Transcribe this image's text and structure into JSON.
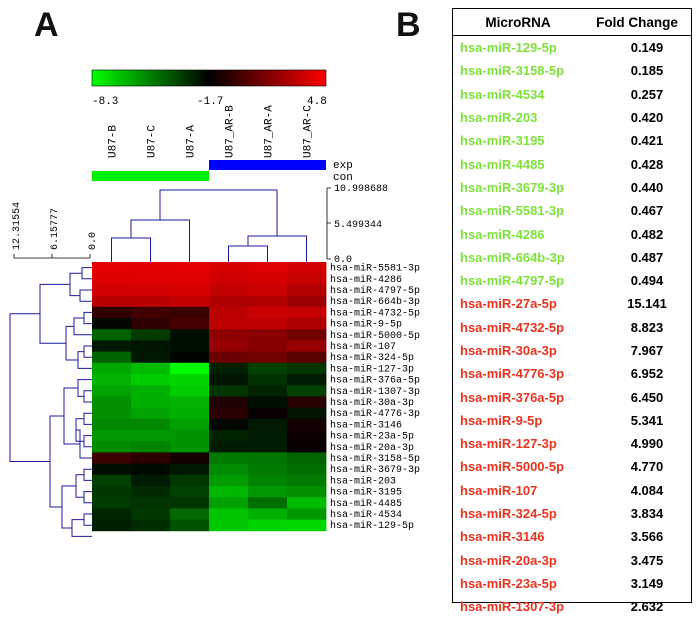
{
  "panels": {
    "a": "A",
    "b": "B"
  },
  "colors": {
    "down": "#7ee23b",
    "up": "#e8341f",
    "exp_bar": "#0000ff",
    "con_bar": "#00ee00",
    "dendrogram": "#1a1a9e"
  },
  "color_scale": {
    "min_label": "-8.3",
    "mid_label": "-1.7",
    "max_label": "4.8"
  },
  "group_labels": {
    "exp": "exp",
    "con": "con"
  },
  "col_dendro_scale": [
    "10.998688",
    "5.499344",
    "0.0"
  ],
  "row_dendro_scale": [
    "12.31554",
    "6.15777",
    "0.0"
  ],
  "chart_data": [
    {
      "type": "heatmap",
      "columns": [
        "U87-B",
        "U87-C",
        "U87-A",
        "U87_AR-B",
        "U87_AR-A",
        "U87_AR-C"
      ],
      "rows": [
        "hsa-miR-5581-3p",
        "hsa-miR-4286",
        "hsa-miR-4797-5p",
        "hsa-miR-664b-3p",
        "hsa-miR-4732-5p",
        "hsa-miR-9-5p",
        "hsa-miR-5000-5p",
        "hsa-miR-107",
        "hsa-miR-324-5p",
        "hsa-miR-127-3p",
        "hsa-miR-376a-5p",
        "hsa-miR-1307-3p",
        "hsa-miR-30a-3p",
        "hsa-miR-4776-3p",
        "hsa-miR-3146",
        "hsa-miR-23a-5p",
        "hsa-miR-20a-3p",
        "hsa-miR-3158-5p",
        "hsa-miR-3679-3p",
        "hsa-miR-203",
        "hsa-miR-3195",
        "hsa-miR-4485",
        "hsa-miR-4534",
        "hsa-miR-129-5p"
      ],
      "values": [
        [
          4.6,
          4.5,
          4.6,
          4.1,
          4.3,
          4.0
        ],
        [
          4.3,
          4.4,
          4.4,
          3.9,
          4.0,
          3.6
        ],
        [
          4.0,
          4.0,
          4.2,
          3.5,
          3.7,
          3.0
        ],
        [
          3.1,
          3.1,
          3.5,
          2.8,
          2.9,
          2.2
        ],
        [
          -0.8,
          -0.4,
          -0.6,
          3.2,
          3.7,
          3.5
        ],
        [
          -2.0,
          -0.8,
          -0.3,
          3.3,
          3.3,
          2.8
        ],
        [
          -4.5,
          -3.5,
          -2.2,
          1.8,
          1.6,
          1.0
        ],
        [
          -2.5,
          -2.4,
          -2.2,
          2.0,
          1.6,
          2.1
        ],
        [
          -4.6,
          -2.5,
          -1.9,
          0.8,
          0.9,
          0.2
        ],
        [
          -6.3,
          -6.8,
          -8.3,
          -2.7,
          -3.6,
          -3.3
        ],
        [
          -6.6,
          -7.2,
          -7.4,
          -2.4,
          -3.2,
          -2.6
        ],
        [
          -6.2,
          -6.5,
          -7.2,
          -3.3,
          -2.8,
          -3.6
        ],
        [
          -5.7,
          -6.5,
          -6.6,
          -1.2,
          -2.2,
          -1.0
        ],
        [
          -5.7,
          -6.2,
          -6.5,
          -0.9,
          -1.6,
          -2.4
        ],
        [
          -5.5,
          -5.5,
          -6.1,
          -2.0,
          -2.5,
          -1.4
        ],
        [
          -5.9,
          -5.9,
          -5.8,
          -2.8,
          -2.6,
          -1.5
        ],
        [
          -5.6,
          -5.4,
          -5.8,
          -2.6,
          -2.6,
          -1.6
        ],
        [
          -0.5,
          -0.9,
          -1.4,
          -5.1,
          -5.0,
          -4.6
        ],
        [
          -2.2,
          -2.1,
          -2.5,
          -5.6,
          -5.2,
          -4.8
        ],
        [
          -3.6,
          -2.6,
          -3.4,
          -6.0,
          -5.4,
          -5.2
        ],
        [
          -3.4,
          -3.0,
          -3.6,
          -6.7,
          -5.9,
          -5.7
        ],
        [
          -3.5,
          -3.3,
          -3.3,
          -6.1,
          -4.8,
          -6.8
        ],
        [
          -2.9,
          -3.4,
          -4.7,
          -7.0,
          -6.5,
          -5.9
        ],
        [
          -2.7,
          -3.1,
          -4.1,
          -7.1,
          -7.4,
          -7.5
        ]
      ]
    },
    {
      "type": "table",
      "headers": [
        "MicroRNA",
        "Fold Change"
      ],
      "rows": [
        {
          "name": "hsa-miR-129-5p",
          "value": "0.149",
          "direction": "down"
        },
        {
          "name": "hsa-miR-3158-5p",
          "value": "0.185",
          "direction": "down"
        },
        {
          "name": "hsa-miR-4534",
          "value": "0.257",
          "direction": "down"
        },
        {
          "name": "hsa-miR-203",
          "value": "0.420",
          "direction": "down"
        },
        {
          "name": "hsa-miR-3195",
          "value": "0.421",
          "direction": "down"
        },
        {
          "name": "hsa-miR-4485",
          "value": "0.428",
          "direction": "down"
        },
        {
          "name": "hsa-miR-3679-3p",
          "value": "0.440",
          "direction": "down"
        },
        {
          "name": "hsa-miR-5581-3p",
          "value": "0.467",
          "direction": "down"
        },
        {
          "name": "hsa-miR-4286",
          "value": "0.482",
          "direction": "down"
        },
        {
          "name": "hsa-miR-664b-3p",
          "value": "0.487",
          "direction": "down"
        },
        {
          "name": "hsa-miR-4797-5p",
          "value": "0.494",
          "direction": "down"
        },
        {
          "name": "hsa-miR-27a-5p",
          "value": "15.141",
          "direction": "up"
        },
        {
          "name": "hsa-miR-4732-5p",
          "value": "8.823",
          "direction": "up"
        },
        {
          "name": "hsa-miR-30a-3p",
          "value": "7.967",
          "direction": "up"
        },
        {
          "name": "hsa-miR-4776-3p",
          "value": "6.952",
          "direction": "up"
        },
        {
          "name": "hsa-miR-376a-5p",
          "value": "6.450",
          "direction": "up"
        },
        {
          "name": "hsa-miR-9-5p",
          "value": "5.341",
          "direction": "up"
        },
        {
          "name": "hsa-miR-127-3p",
          "value": "4.990",
          "direction": "up"
        },
        {
          "name": "hsa-miR-5000-5p",
          "value": "4.770",
          "direction": "up"
        },
        {
          "name": "hsa-miR-107",
          "value": "4.084",
          "direction": "up"
        },
        {
          "name": "hsa-miR-324-5p",
          "value": "3.834",
          "direction": "up"
        },
        {
          "name": "hsa-miR-3146",
          "value": "3.566",
          "direction": "up"
        },
        {
          "name": "hsa-miR-20a-3p",
          "value": "3.475",
          "direction": "up"
        },
        {
          "name": "hsa-miR-23a-5p",
          "value": "3.149",
          "direction": "up"
        },
        {
          "name": "hsa-miR-1307-3p",
          "value": "2.632",
          "direction": "up"
        }
      ]
    }
  ]
}
